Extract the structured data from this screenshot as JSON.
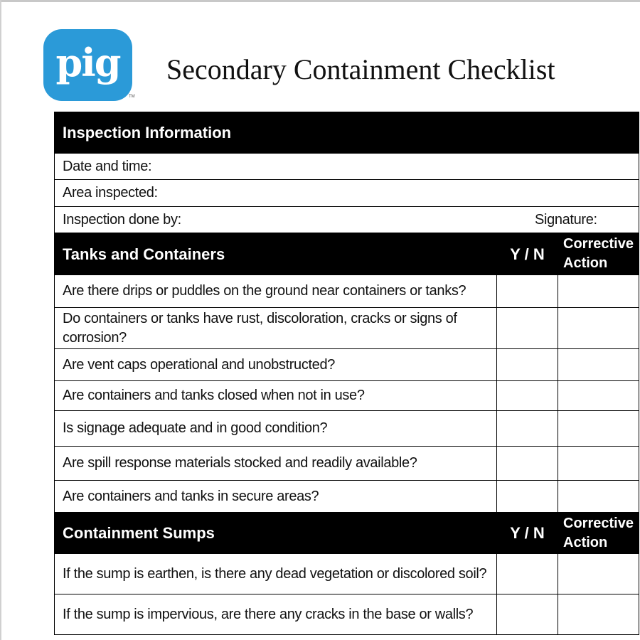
{
  "logo": {
    "text": "pig",
    "trademark": "TM",
    "color": "#2b9ad8"
  },
  "title": "Secondary Containment Checklist",
  "inspection": {
    "header": "Inspection Information",
    "date_label": "Date and time:",
    "area_label": "Area inspected:",
    "done_by_label": "Inspection done by:",
    "signature_label": "Signature:"
  },
  "tanks": {
    "header": "Tanks and Containers",
    "yn": "Y / N",
    "action": "Corrective Action",
    "questions": [
      "Are there drips or puddles on the ground near containers or tanks?",
      "Do containers or tanks have rust, discoloration, cracks or signs of corrosion?",
      "Are vent caps operational and unobstructed?",
      "Are containers and tanks closed when not in use?",
      "Is signage adequate and in good condition?",
      "Are spill response materials stocked and readily available?",
      "Are containers and tanks in secure areas?"
    ]
  },
  "sumps": {
    "header": "Containment Sumps",
    "yn": "Y / N",
    "action": "Corrective Action",
    "questions": [
      "If the sump is earthen, is there any dead vegetation or discolored soil?",
      "If the sump is impervious, are there any cracks in the base or walls?"
    ]
  }
}
